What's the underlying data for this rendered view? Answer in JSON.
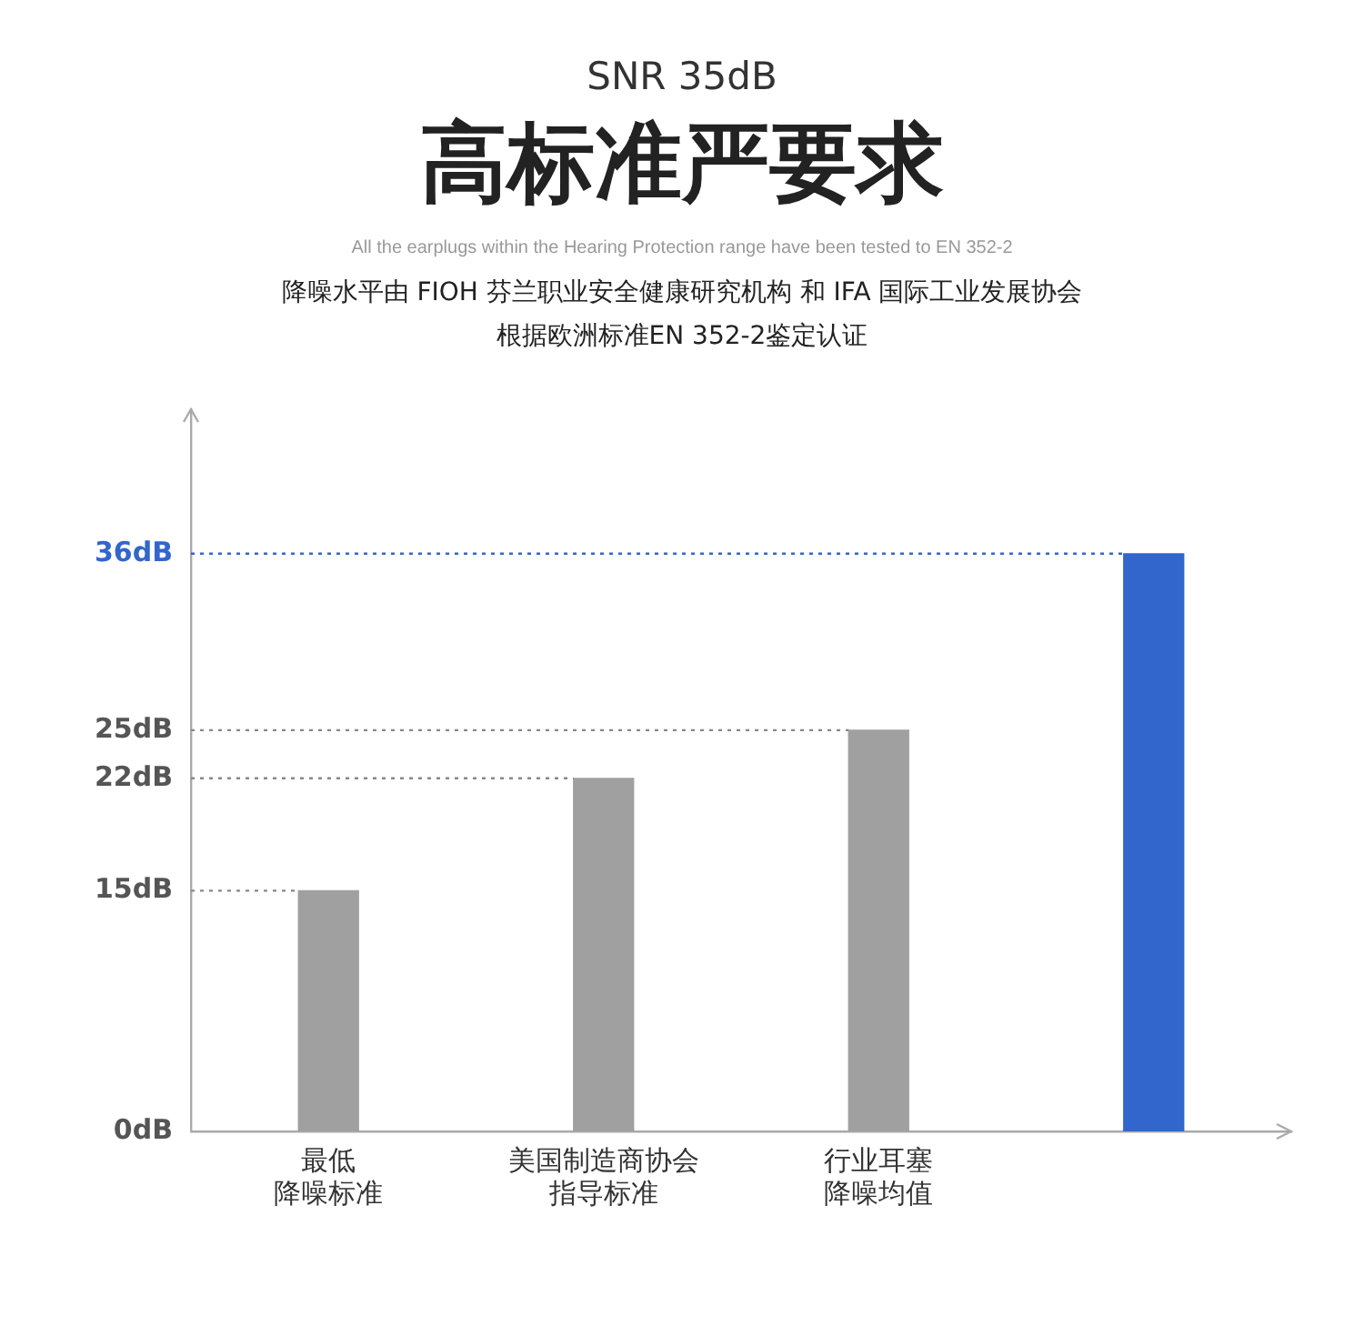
{
  "chart_data": {
    "type": "bar",
    "subtitle": "SNR 35dB",
    "title": "高标准严要求",
    "annotations": [
      "All the earplugs within the Hearing Protection range have been tested to EN 352-2",
      "降噪水平由 FIOH 芬兰职业安全健康研究机构 和 IFA 国际工业发展协会",
      "根据欧洲标准EN 352-2鉴定认证"
    ],
    "categories": [
      "最低降噪标准",
      "美国制造商协会指导标准",
      "行业耳塞降噪均值",
      null
    ],
    "values": [
      15,
      22,
      25,
      36
    ],
    "colors": [
      "#a0a0a0",
      "#a0a0a0",
      "#a0a0a0",
      "#3366cc"
    ],
    "ylim": [
      0,
      45
    ],
    "yticks": [
      {
        "value": 0,
        "label": "0dB"
      },
      {
        "value": 15,
        "label": "15dB"
      },
      {
        "value": 22,
        "label": "22dB"
      },
      {
        "value": 25,
        "label": "25dB"
      },
      {
        "value": 36,
        "label": "36dB"
      }
    ],
    "ref_lines": [
      {
        "axis": "y",
        "value": 15,
        "label": null,
        "color": "#888888",
        "line_style": "dotted"
      },
      {
        "axis": "y",
        "value": 22,
        "label": null,
        "color": "#888888",
        "line_style": "dotted"
      },
      {
        "axis": "y",
        "value": 25,
        "label": null,
        "color": "#888888",
        "line_style": "dotted"
      },
      {
        "axis": "y",
        "value": 36,
        "label": null,
        "color": "#3366cc",
        "line_style": "dotted"
      }
    ],
    "grid": false,
    "legend": false
  }
}
